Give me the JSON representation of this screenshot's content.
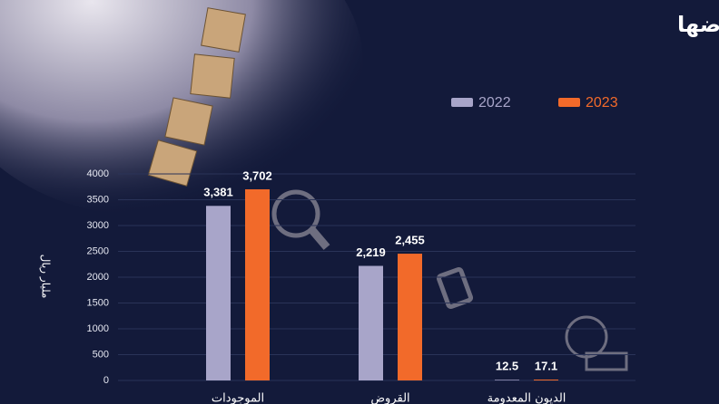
{
  "chart_data": {
    "type": "bar",
    "title": "المدرجة مقارنة بأصولها وقروضها",
    "y_label": "مليار ريال",
    "categories": [
      "الموجودات",
      "القروض",
      "الديون المعدومة"
    ],
    "series": [
      {
        "name": "2022",
        "color": "#a8a5c9",
        "values": [
          3381,
          2219,
          12.5
        ],
        "value_labels": [
          "3,381",
          "2,219",
          "12.5"
        ]
      },
      {
        "name": "2023",
        "color": "#f26a2a",
        "values": [
          3702,
          2455,
          17.1
        ],
        "value_labels": [
          "3,702",
          "2,455",
          "17.1"
        ]
      }
    ],
    "ylim": [
      0,
      4000
    ],
    "yticks": [
      0,
      500,
      1000,
      1500,
      2000,
      2500,
      3000,
      3500,
      4000
    ],
    "grid": true
  }
}
